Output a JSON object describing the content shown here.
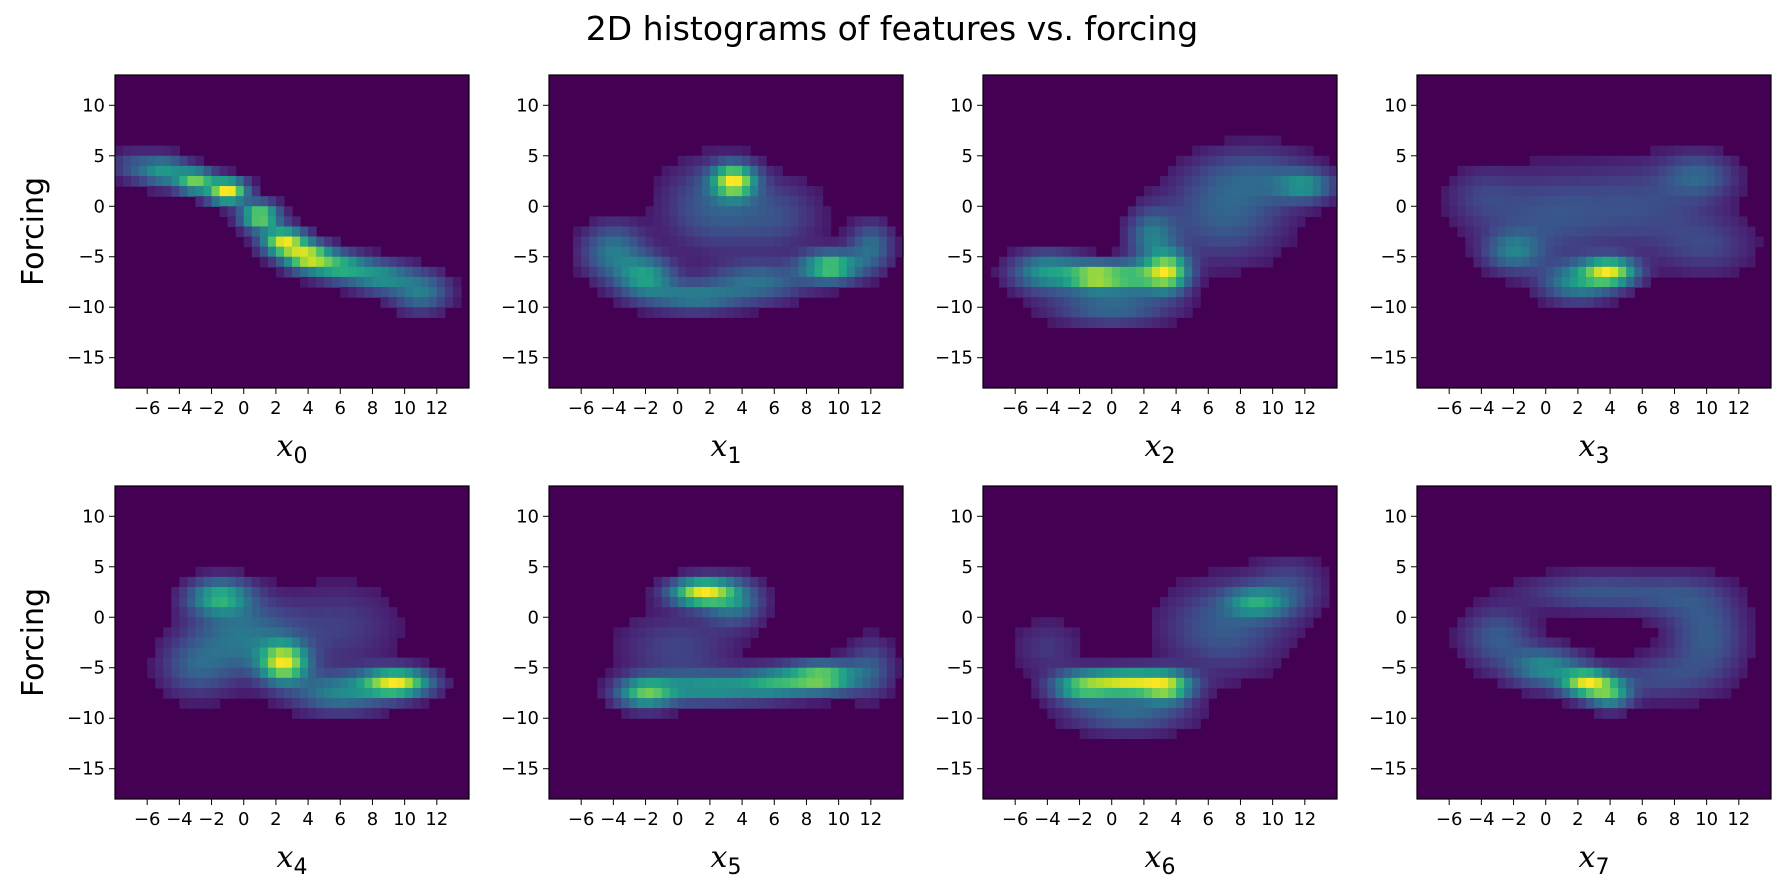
{
  "figure": {
    "title": "2D histograms of features vs. forcing"
  },
  "chart_data": {
    "type": "heatmap",
    "title": "2D histograms of features vs. forcing",
    "colormap": "viridis",
    "background_color": "#440154",
    "peak_color": "#fde725",
    "grid": false,
    "xlim": [
      -8,
      14
    ],
    "ylim": [
      -18,
      13
    ],
    "x_ticks": [
      -6,
      -4,
      -2,
      0,
      2,
      4,
      6,
      8,
      10,
      12
    ],
    "y_ticks": [
      10,
      5,
      0,
      -5,
      -10,
      -15
    ],
    "ylabel": "Forcing",
    "panels": [
      {
        "xlabel": "x",
        "xlabel_sub": "0",
        "blobs": [
          {
            "x": -7,
            "y": 4,
            "sx": 0.9,
            "sy": 1.0,
            "w": 0.18
          },
          {
            "x": -5,
            "y": 3.5,
            "sx": 1.0,
            "sy": 1.0,
            "w": 0.45
          },
          {
            "x": -3,
            "y": 2.5,
            "sx": 0.8,
            "sy": 0.8,
            "w": 0.7
          },
          {
            "x": -1,
            "y": 1.5,
            "sx": 0.8,
            "sy": 0.8,
            "w": 1.0
          },
          {
            "x": 1,
            "y": -1,
            "sx": 0.8,
            "sy": 0.9,
            "w": 0.8
          },
          {
            "x": 2.5,
            "y": -3.5,
            "sx": 0.9,
            "sy": 0.9,
            "w": 0.9
          },
          {
            "x": 4,
            "y": -5,
            "sx": 1.0,
            "sy": 0.9,
            "w": 0.85
          },
          {
            "x": 6,
            "y": -6,
            "sx": 1.2,
            "sy": 0.9,
            "w": 0.55
          },
          {
            "x": 8.5,
            "y": -7,
            "sx": 1.3,
            "sy": 1.0,
            "w": 0.42
          },
          {
            "x": 11,
            "y": -8.5,
            "sx": 1.2,
            "sy": 1.3,
            "w": 0.35
          }
        ]
      },
      {
        "xlabel": "x",
        "xlabel_sub": "1",
        "blobs": [
          {
            "x": 3.5,
            "y": 2.5,
            "sx": 0.9,
            "sy": 1.1,
            "w": 1.0
          },
          {
            "x": 2,
            "y": 0,
            "sx": 2.0,
            "sy": 3.0,
            "w": 0.25
          },
          {
            "x": -2,
            "y": -7,
            "sx": 1.2,
            "sy": 1.3,
            "w": 0.55
          },
          {
            "x": -4,
            "y": -4.5,
            "sx": 1.3,
            "sy": 1.8,
            "w": 0.4
          },
          {
            "x": 1,
            "y": -9,
            "sx": 2.0,
            "sy": 1.0,
            "w": 0.4
          },
          {
            "x": 5,
            "y": -7.5,
            "sx": 2.0,
            "sy": 1.3,
            "w": 0.35
          },
          {
            "x": 9.5,
            "y": -6,
            "sx": 1.2,
            "sy": 1.0,
            "w": 0.8
          },
          {
            "x": 12,
            "y": -4,
            "sx": 0.9,
            "sy": 1.6,
            "w": 0.35
          },
          {
            "x": 6,
            "y": -1,
            "sx": 2.0,
            "sy": 2.5,
            "w": 0.2
          }
        ]
      },
      {
        "xlabel": "x",
        "xlabel_sub": "2",
        "blobs": [
          {
            "x": -1,
            "y": -7,
            "sx": 1.2,
            "sy": 0.9,
            "w": 0.85
          },
          {
            "x": -4,
            "y": -6.5,
            "sx": 1.5,
            "sy": 1.3,
            "w": 0.5
          },
          {
            "x": 3.5,
            "y": -6.5,
            "sx": 0.9,
            "sy": 1.3,
            "w": 0.85
          },
          {
            "x": 1.5,
            "y": -7,
            "sx": 1.2,
            "sy": 1.0,
            "w": 0.55
          },
          {
            "x": 2.5,
            "y": -3,
            "sx": 1.0,
            "sy": 1.8,
            "w": 0.35
          },
          {
            "x": 7,
            "y": -1,
            "sx": 2.5,
            "sy": 3.0,
            "w": 0.25
          },
          {
            "x": 12,
            "y": 2,
            "sx": 1.2,
            "sy": 1.0,
            "w": 0.4
          },
          {
            "x": 9,
            "y": 3,
            "sx": 2.5,
            "sy": 2.0,
            "w": 0.2
          },
          {
            "x": 0,
            "y": -10,
            "sx": 2.5,
            "sy": 1.2,
            "w": 0.3
          }
        ]
      },
      {
        "xlabel": "x",
        "xlabel_sub": "3",
        "blobs": [
          {
            "x": 4,
            "y": -6.5,
            "sx": 1.1,
            "sy": 0.9,
            "w": 0.9
          },
          {
            "x": 2,
            "y": -7.5,
            "sx": 1.5,
            "sy": 1.3,
            "w": 0.45
          },
          {
            "x": -2,
            "y": -4.5,
            "sx": 1.2,
            "sy": 1.3,
            "w": 0.35
          },
          {
            "x": 0,
            "y": -1,
            "sx": 2.8,
            "sy": 3.0,
            "w": 0.2
          },
          {
            "x": 9.5,
            "y": 3,
            "sx": 1.5,
            "sy": 1.5,
            "w": 0.25
          },
          {
            "x": 6,
            "y": 0,
            "sx": 3.0,
            "sy": 3.0,
            "w": 0.18
          },
          {
            "x": 10,
            "y": -4,
            "sx": 2.0,
            "sy": 2.0,
            "w": 0.15
          },
          {
            "x": -4,
            "y": 1,
            "sx": 1.5,
            "sy": 2.0,
            "w": 0.12
          }
        ]
      },
      {
        "xlabel": "x",
        "xlabel_sub": "4",
        "blobs": [
          {
            "x": -1.5,
            "y": 2,
            "sx": 1.3,
            "sy": 1.2,
            "w": 0.5
          },
          {
            "x": 2.5,
            "y": -4.5,
            "sx": 1.0,
            "sy": 1.3,
            "w": 0.8
          },
          {
            "x": 9.5,
            "y": -6.5,
            "sx": 1.4,
            "sy": 0.9,
            "w": 0.85
          },
          {
            "x": 0,
            "y": -2,
            "sx": 2.2,
            "sy": 2.5,
            "w": 0.3
          },
          {
            "x": 6,
            "y": -7.5,
            "sx": 2.0,
            "sy": 1.3,
            "w": 0.35
          },
          {
            "x": -3,
            "y": -5,
            "sx": 1.5,
            "sy": 2.0,
            "w": 0.2
          },
          {
            "x": 6,
            "y": -1,
            "sx": 2.5,
            "sy": 3.0,
            "w": 0.12
          }
        ]
      },
      {
        "xlabel": "x",
        "xlabel_sub": "5",
        "blobs": [
          {
            "x": 1.5,
            "y": 2.5,
            "sx": 1.3,
            "sy": 0.9,
            "w": 0.9
          },
          {
            "x": 3.5,
            "y": 1.5,
            "sx": 1.2,
            "sy": 1.5,
            "w": 0.35
          },
          {
            "x": -2,
            "y": -7.5,
            "sx": 1.2,
            "sy": 1.0,
            "w": 0.6
          },
          {
            "x": 2,
            "y": -7,
            "sx": 2.5,
            "sy": 1.0,
            "w": 0.45
          },
          {
            "x": 9,
            "y": -6,
            "sx": 1.5,
            "sy": 1.0,
            "w": 0.75
          },
          {
            "x": 6,
            "y": -6.5,
            "sx": 1.5,
            "sy": 1.0,
            "w": 0.4
          },
          {
            "x": 0,
            "y": -3,
            "sx": 2.5,
            "sy": 2.5,
            "w": 0.15
          },
          {
            "x": 12,
            "y": -5,
            "sx": 1.0,
            "sy": 2.0,
            "w": 0.2
          }
        ]
      },
      {
        "xlabel": "x",
        "xlabel_sub": "6",
        "blobs": [
          {
            "x": 1,
            "y": -6.5,
            "sx": 2.0,
            "sy": 0.9,
            "w": 0.95
          },
          {
            "x": -2,
            "y": -7,
            "sx": 1.2,
            "sy": 1.0,
            "w": 0.5
          },
          {
            "x": 3.5,
            "y": -7,
            "sx": 1.0,
            "sy": 1.0,
            "w": 0.6
          },
          {
            "x": 1,
            "y": -9.5,
            "sx": 2.5,
            "sy": 1.3,
            "w": 0.3
          },
          {
            "x": 9,
            "y": 1.5,
            "sx": 1.3,
            "sy": 1.0,
            "w": 0.45
          },
          {
            "x": 7,
            "y": -1,
            "sx": 2.5,
            "sy": 3.0,
            "w": 0.25
          },
          {
            "x": 11,
            "y": 3,
            "sx": 1.5,
            "sy": 2.0,
            "w": 0.18
          },
          {
            "x": -4,
            "y": -3,
            "sx": 1.5,
            "sy": 2.0,
            "w": 0.12
          }
        ]
      },
      {
        "xlabel": "x",
        "xlabel_sub": "7",
        "blobs": [
          {
            "x": 2.5,
            "y": -6.5,
            "sx": 1.0,
            "sy": 0.9,
            "w": 0.9
          },
          {
            "x": 4,
            "y": -7.5,
            "sx": 0.9,
            "sy": 1.0,
            "w": 0.6
          },
          {
            "x": 0,
            "y": -5,
            "sx": 1.5,
            "sy": 1.3,
            "w": 0.45
          },
          {
            "x": -3,
            "y": -2,
            "sx": 1.5,
            "sy": 2.0,
            "w": 0.25
          },
          {
            "x": 3,
            "y": 2.5,
            "sx": 3.0,
            "sy": 1.3,
            "w": 0.22
          },
          {
            "x": 10,
            "y": -2,
            "sx": 1.6,
            "sy": 3.0,
            "w": 0.25
          },
          {
            "x": 7,
            "y": -6,
            "sx": 2.0,
            "sy": 1.5,
            "w": 0.18
          },
          {
            "x": 8,
            "y": 2,
            "sx": 2.0,
            "sy": 1.5,
            "w": 0.15
          }
        ]
      }
    ]
  }
}
